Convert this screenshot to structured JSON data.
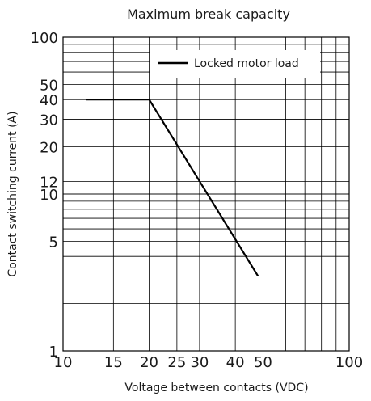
{
  "chart_data": {
    "type": "line",
    "title": "Maximum break capacity",
    "xlabel": "Voltage between contacts (VDC)",
    "ylabel": "Contact switching current (A)",
    "x_scale": "log",
    "y_scale": "log",
    "xlim": [
      10,
      100
    ],
    "ylim": [
      1,
      100
    ],
    "x_ticks": [
      10,
      15,
      20,
      25,
      30,
      40,
      50,
      100
    ],
    "x_tick_labels": [
      "10",
      "15",
      "20",
      "25",
      "30",
      "40",
      "50",
      "100"
    ],
    "y_ticks": [
      1,
      5,
      10,
      12,
      20,
      30,
      40,
      50,
      100
    ],
    "y_tick_labels": [
      "1",
      "5",
      "10",
      "12",
      "20",
      "30",
      "40",
      "50",
      "100"
    ],
    "grid": true,
    "legend_position": "top-right",
    "series": [
      {
        "name": "Locked motor load",
        "color": "#000000",
        "x": [
          12,
          20,
          48
        ],
        "y": [
          40,
          40,
          3
        ]
      }
    ]
  }
}
